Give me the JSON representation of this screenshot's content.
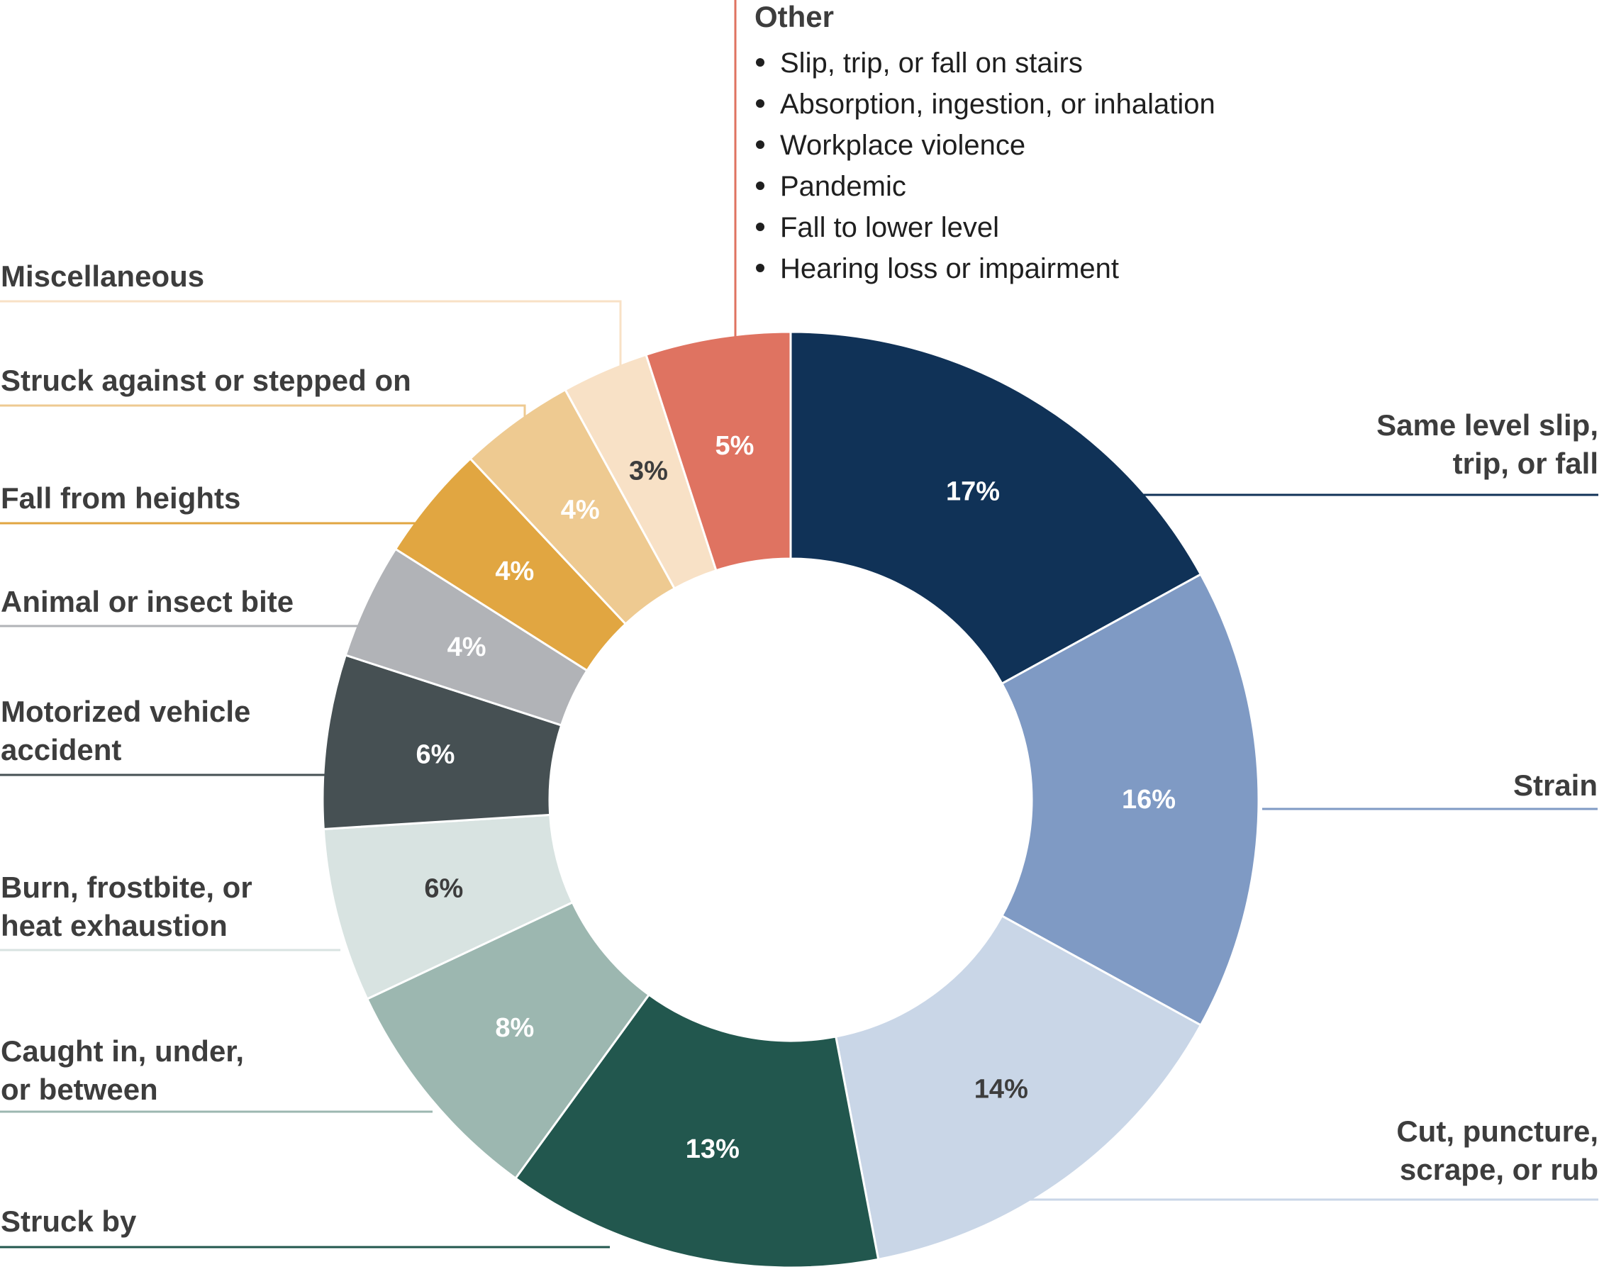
{
  "chart_data": {
    "type": "pie",
    "donut": true,
    "slices": [
      {
        "label": "Same level slip, trip, or fall",
        "value": 17,
        "display": "17%",
        "color": "#103257",
        "text_color": "#ffffff"
      },
      {
        "label": "Strain",
        "value": 16,
        "display": "16%",
        "color": "#7f9ac4",
        "text_color": "#ffffff"
      },
      {
        "label": "Cut, puncture, scrape, or rub",
        "value": 14,
        "display": "14%",
        "color": "#c9d6e7",
        "text_color": "#3d3d3d"
      },
      {
        "label": "Struck by",
        "value": 13,
        "display": "13%",
        "color": "#22574e",
        "text_color": "#ffffff"
      },
      {
        "label": "Caught in, under, or between",
        "value": 8,
        "display": "8%",
        "color": "#9cb7b0",
        "text_color": "#ffffff"
      },
      {
        "label": "Burn, frostbite, or heat exhaustion",
        "value": 6,
        "display": "6%",
        "color": "#d8e3e1",
        "text_color": "#3d3d3d"
      },
      {
        "label": "Motorized vehicle accident",
        "value": 6,
        "display": "6%",
        "color": "#465053",
        "text_color": "#ffffff"
      },
      {
        "label": "Animal or insect bite",
        "value": 4,
        "display": "4%",
        "color": "#b1b3b7",
        "text_color": "#ffffff"
      },
      {
        "label": "Fall from heights",
        "value": 4,
        "display": "4%",
        "color": "#e1a641",
        "text_color": "#ffffff"
      },
      {
        "label": "Struck against or stepped on",
        "value": 4,
        "display": "4%",
        "color": "#eeca91",
        "text_color": "#ffffff"
      },
      {
        "label": "Miscellaneous",
        "value": 3,
        "display": "3%",
        "color": "#f8e1c6",
        "text_color": "#3d3d3d"
      },
      {
        "label": "Other",
        "value": 5,
        "display": "5%",
        "color": "#df7361",
        "text_color": "#ffffff"
      }
    ],
    "other_breakdown": [
      "Slip, trip, or fall on stairs",
      "Absorption, ingestion, or inhalation",
      "Workplace violence",
      "Pandemic",
      "Fall to lower level",
      "Hearing loss or impairment"
    ]
  }
}
